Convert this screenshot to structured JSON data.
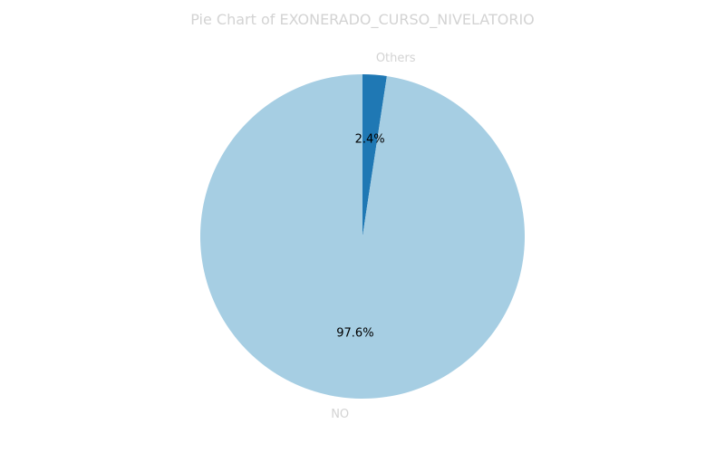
{
  "chart_data": {
    "type": "pie",
    "title": "Pie Chart of EXONERADO_CURSO_NIVELATORIO",
    "slices": [
      {
        "label": "Others",
        "value": 2.4,
        "pct_label": "2.4%",
        "color": "#1f78b4"
      },
      {
        "label": "NO",
        "value": 97.6,
        "pct_label": "97.6%",
        "color": "#a6cee3"
      }
    ],
    "start_angle_deg": 90,
    "direction": "clockwise",
    "label_color": "#d3d3d3",
    "pct_color": "#000000"
  }
}
